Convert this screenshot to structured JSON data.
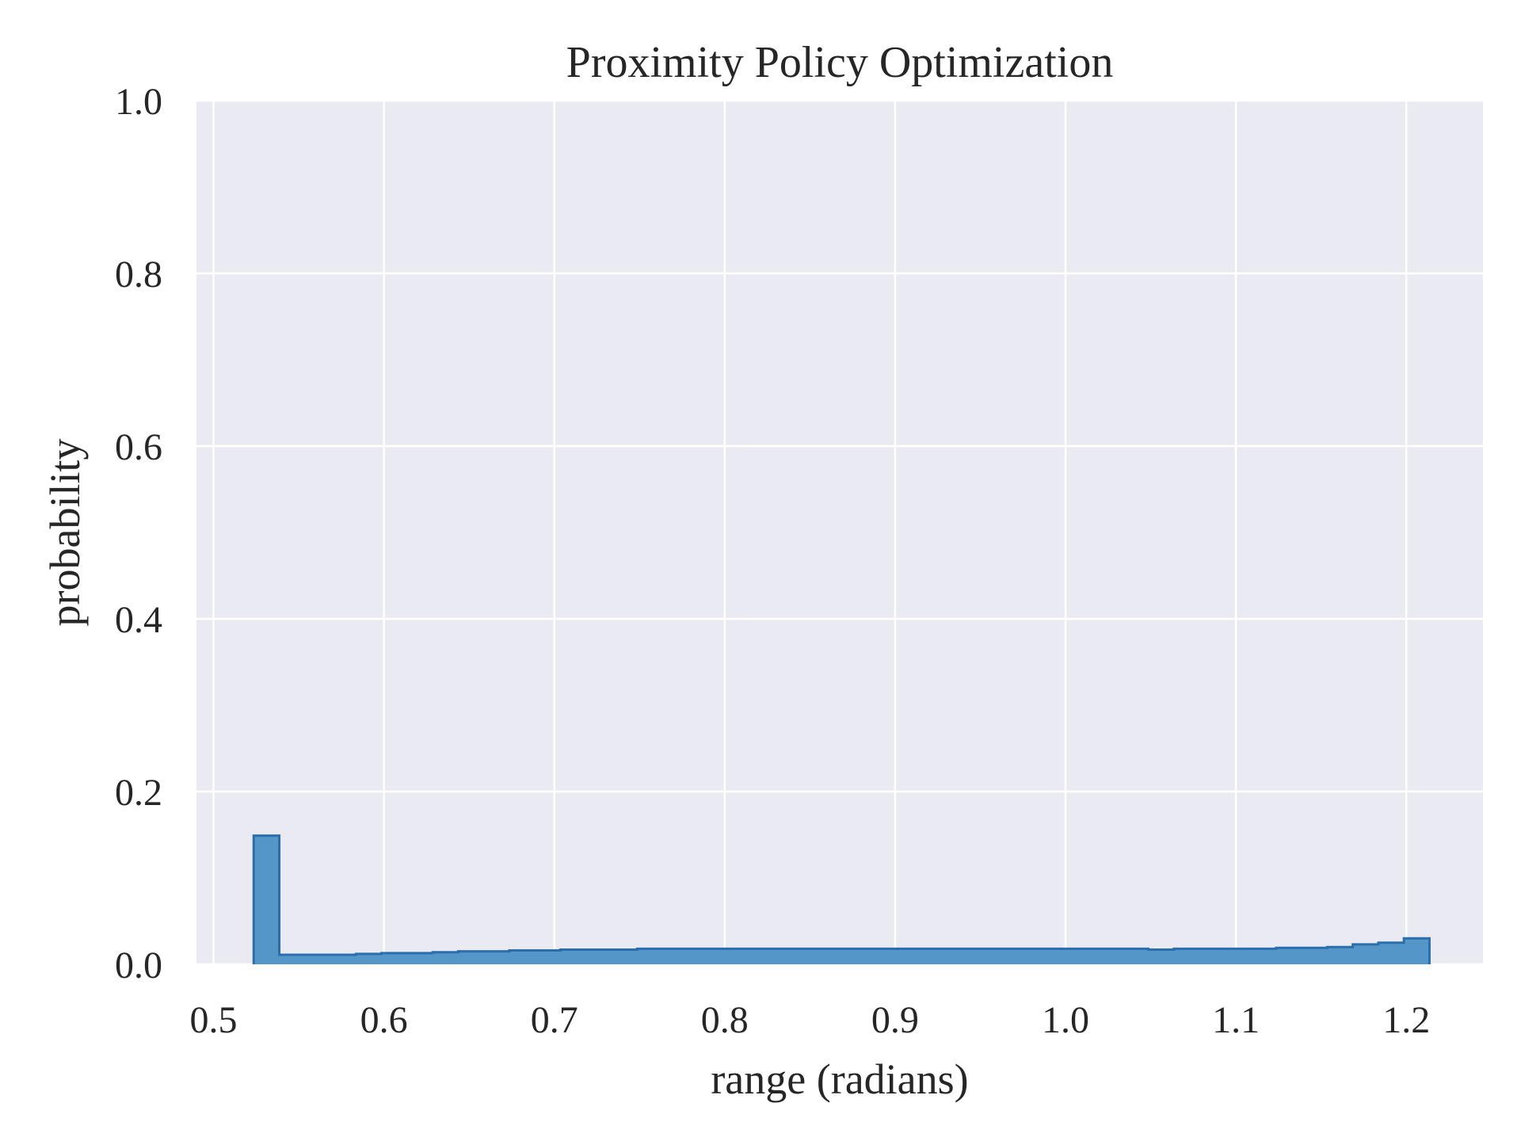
{
  "chart_data": {
    "type": "bar",
    "title": "Proximity Policy Optimization",
    "xlabel": "range (radians)",
    "ylabel": "probability",
    "xlim": [
      0.49,
      1.245
    ],
    "ylim": [
      0.0,
      1.0
    ],
    "xticks": [
      0.5,
      0.6,
      0.7,
      0.8,
      0.9,
      1.0,
      1.1,
      1.2
    ],
    "xtick_labels": [
      "0.5",
      "0.6",
      "0.7",
      "0.8",
      "0.9",
      "1.0",
      "1.1",
      "1.2"
    ],
    "yticks": [
      0.0,
      0.2,
      0.4,
      0.6,
      0.8,
      1.0
    ],
    "ytick_labels": [
      "0.0",
      "0.2",
      "0.4",
      "0.6",
      "0.8",
      "1.0"
    ],
    "grid": true,
    "histtype": "step-filled",
    "bin_edges": [
      0.5236,
      0.5386,
      0.5536,
      0.5686,
      0.5836,
      0.5986,
      0.6136,
      0.6286,
      0.6436,
      0.6586,
      0.6736,
      0.6886,
      0.7036,
      0.7186,
      0.7336,
      0.7486,
      0.7636,
      0.7786,
      0.7936,
      0.8086,
      0.8236,
      0.8386,
      0.8536,
      0.8686,
      0.8836,
      0.8986,
      0.9136,
      0.9286,
      0.9436,
      0.9586,
      0.9736,
      0.9886,
      1.0036,
      1.0186,
      1.0336,
      1.0486,
      1.0636,
      1.0786,
      1.0936,
      1.1086,
      1.1236,
      1.1386,
      1.1536,
      1.1686,
      1.1836,
      1.1986,
      1.2136
    ],
    "values": [
      0.149,
      0.011,
      0.011,
      0.011,
      0.012,
      0.013,
      0.013,
      0.014,
      0.015,
      0.015,
      0.016,
      0.016,
      0.017,
      0.017,
      0.017,
      0.018,
      0.018,
      0.018,
      0.018,
      0.018,
      0.018,
      0.018,
      0.018,
      0.018,
      0.018,
      0.018,
      0.018,
      0.018,
      0.018,
      0.018,
      0.018,
      0.018,
      0.018,
      0.018,
      0.018,
      0.017,
      0.018,
      0.018,
      0.018,
      0.018,
      0.019,
      0.019,
      0.02,
      0.023,
      0.025,
      0.03
    ],
    "colors": {
      "plot_background": "#EAEAF2",
      "grid": "#FFFFFF",
      "fill": "#5596C8",
      "edge": "#2A6EAE",
      "text": "#262626"
    }
  }
}
